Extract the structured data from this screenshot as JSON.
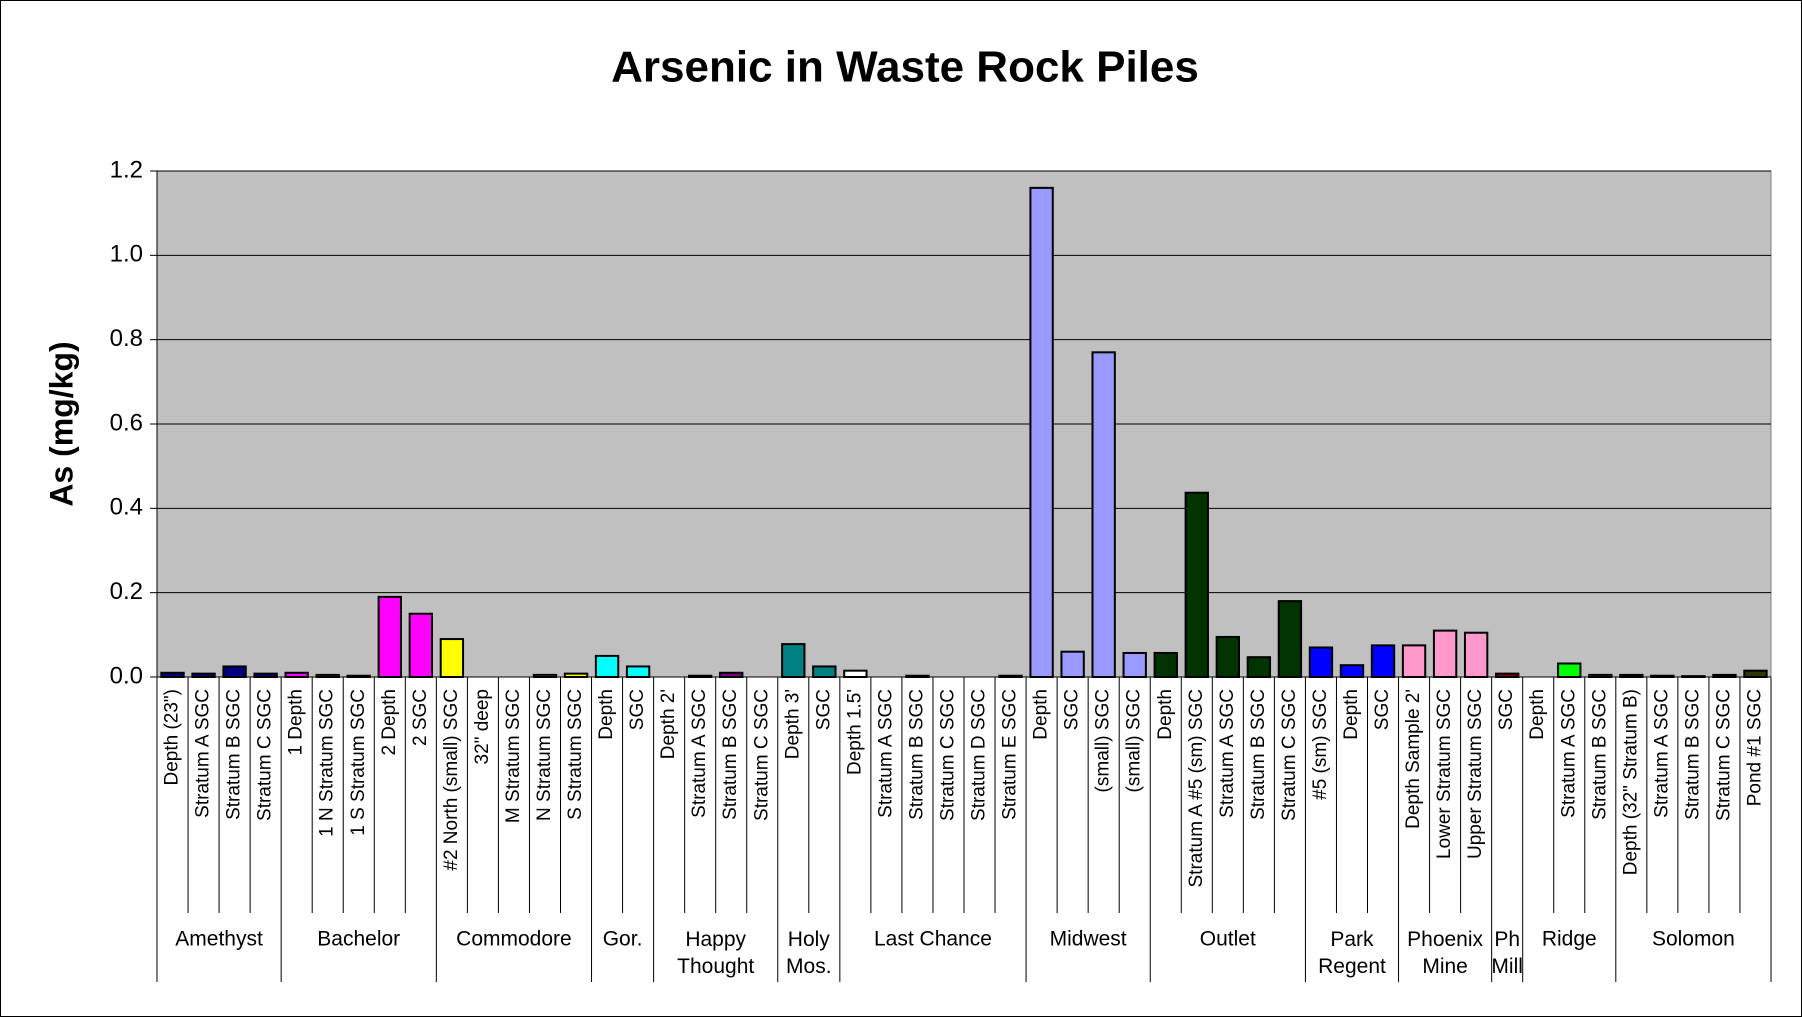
{
  "chart_data": {
    "type": "bar",
    "title": "Arsenic in Waste Rock Piles",
    "y_label": "As (mg/kg)",
    "ylim": [
      0,
      1.2
    ],
    "yticks": [
      {
        "value": 0,
        "label": "0.0"
      },
      {
        "value": 0.2,
        "label": "0.2"
      },
      {
        "value": 0.4,
        "label": "0.4"
      },
      {
        "value": 0.6,
        "label": "0.6"
      },
      {
        "value": 0.8,
        "label": "0.8"
      },
      {
        "value": 1.0,
        "label": "1.0"
      },
      {
        "value": 1.2,
        "label": "1.2"
      }
    ],
    "grid": true,
    "groups": [
      {
        "name": "Amethyst",
        "categories": [
          "Depth (23\")",
          "Stratum A SGC",
          "Stratum B SGC",
          "Stratum C SGC"
        ],
        "values": [
          0.01,
          0.008,
          0.025,
          0.008
        ],
        "color": "#000080"
      },
      {
        "name": "Bachelor",
        "categories": [
          "1 Depth",
          "1 N Stratum SGC",
          "1 S Stratum SGC",
          "2 Depth",
          "2 SGC"
        ],
        "values": [
          0.01,
          0.005,
          0.003,
          0.19,
          0.15
        ],
        "color": "#ff00ff"
      },
      {
        "name": "Commodore",
        "categories": [
          "#2 North (small) SGC",
          "32\" deep",
          "M Stratum SGC",
          "N Stratum SGC",
          "S Stratum SGC"
        ],
        "values": [
          0.09,
          0,
          0,
          0.005,
          0.008
        ],
        "color": "#ffff00"
      },
      {
        "name": "Gor.",
        "categories": [
          "Depth",
          "SGC"
        ],
        "values": [
          0.05,
          0.025
        ],
        "color": "#00ffff"
      },
      {
        "name": "Happy Thought",
        "categories": [
          "Depth 2'",
          "Stratum A SGC",
          "Stratum B SGC",
          "Stratum C SGC"
        ],
        "values": [
          0,
          0.003,
          0.01,
          0
        ],
        "color": "#800080"
      },
      {
        "name": "Holy Mos.",
        "categories": [
          "Depth 3'",
          "SGC"
        ],
        "values": [
          0.078,
          0.025
        ],
        "color": "#008080"
      },
      {
        "name": "Last Chance",
        "categories": [
          "Depth 1.5'",
          "Stratum A SGC",
          "Stratum B SGC",
          "Stratum C SGC",
          "Stratum D SGC",
          "Stratum E SGC"
        ],
        "values": [
          0.015,
          0,
          0.003,
          0,
          0,
          0.003
        ],
        "color": "#ffffff"
      },
      {
        "name": "Midwest",
        "categories": [
          "Depth",
          "SGC",
          "(small) SGC",
          "(small) SGC"
        ],
        "values": [
          1.16,
          0.06,
          0.77,
          0.057
        ],
        "color": "#9999ff"
      },
      {
        "name": "Outlet",
        "categories": [
          "Depth",
          "Stratum A #5 (sm) SGC",
          "Stratum A SGC",
          "Stratum B SGC",
          "Stratum C SGC"
        ],
        "values": [
          0.057,
          0.437,
          0.095,
          0.047,
          0.18
        ],
        "color": "#003300"
      },
      {
        "name": "Park Regent",
        "categories": [
          "#5 (sm) SGC",
          "Depth",
          "SGC"
        ],
        "values": [
          0.07,
          0.028,
          0.075
        ],
        "color": "#0000ff"
      },
      {
        "name": "Phoenix Mine",
        "categories": [
          "Depth Sample 2'",
          "Lower Stratum SGC",
          "Upper Stratum SGC"
        ],
        "values": [
          0.075,
          0.11,
          0.105
        ],
        "color": "#ff99cc"
      },
      {
        "name": "Ph Mill",
        "categories": [
          "SGC"
        ],
        "values": [
          0.008
        ],
        "color": "#800000"
      },
      {
        "name": "Ridge",
        "categories": [
          "Depth",
          "Stratum A SGC",
          "Stratum B SGC"
        ],
        "values": [
          0,
          0.032,
          0.005
        ],
        "color": "#00ff00"
      },
      {
        "name": "Solomon",
        "categories": [
          "Depth (32\" Stratum B)",
          "Stratum A SGC",
          "Stratum B SGC",
          "Stratum C SGC",
          "Pond #1 SGC"
        ],
        "values": [
          0.005,
          0.003,
          0.002,
          0.005,
          0.015
        ],
        "color": "#333300"
      }
    ]
  }
}
